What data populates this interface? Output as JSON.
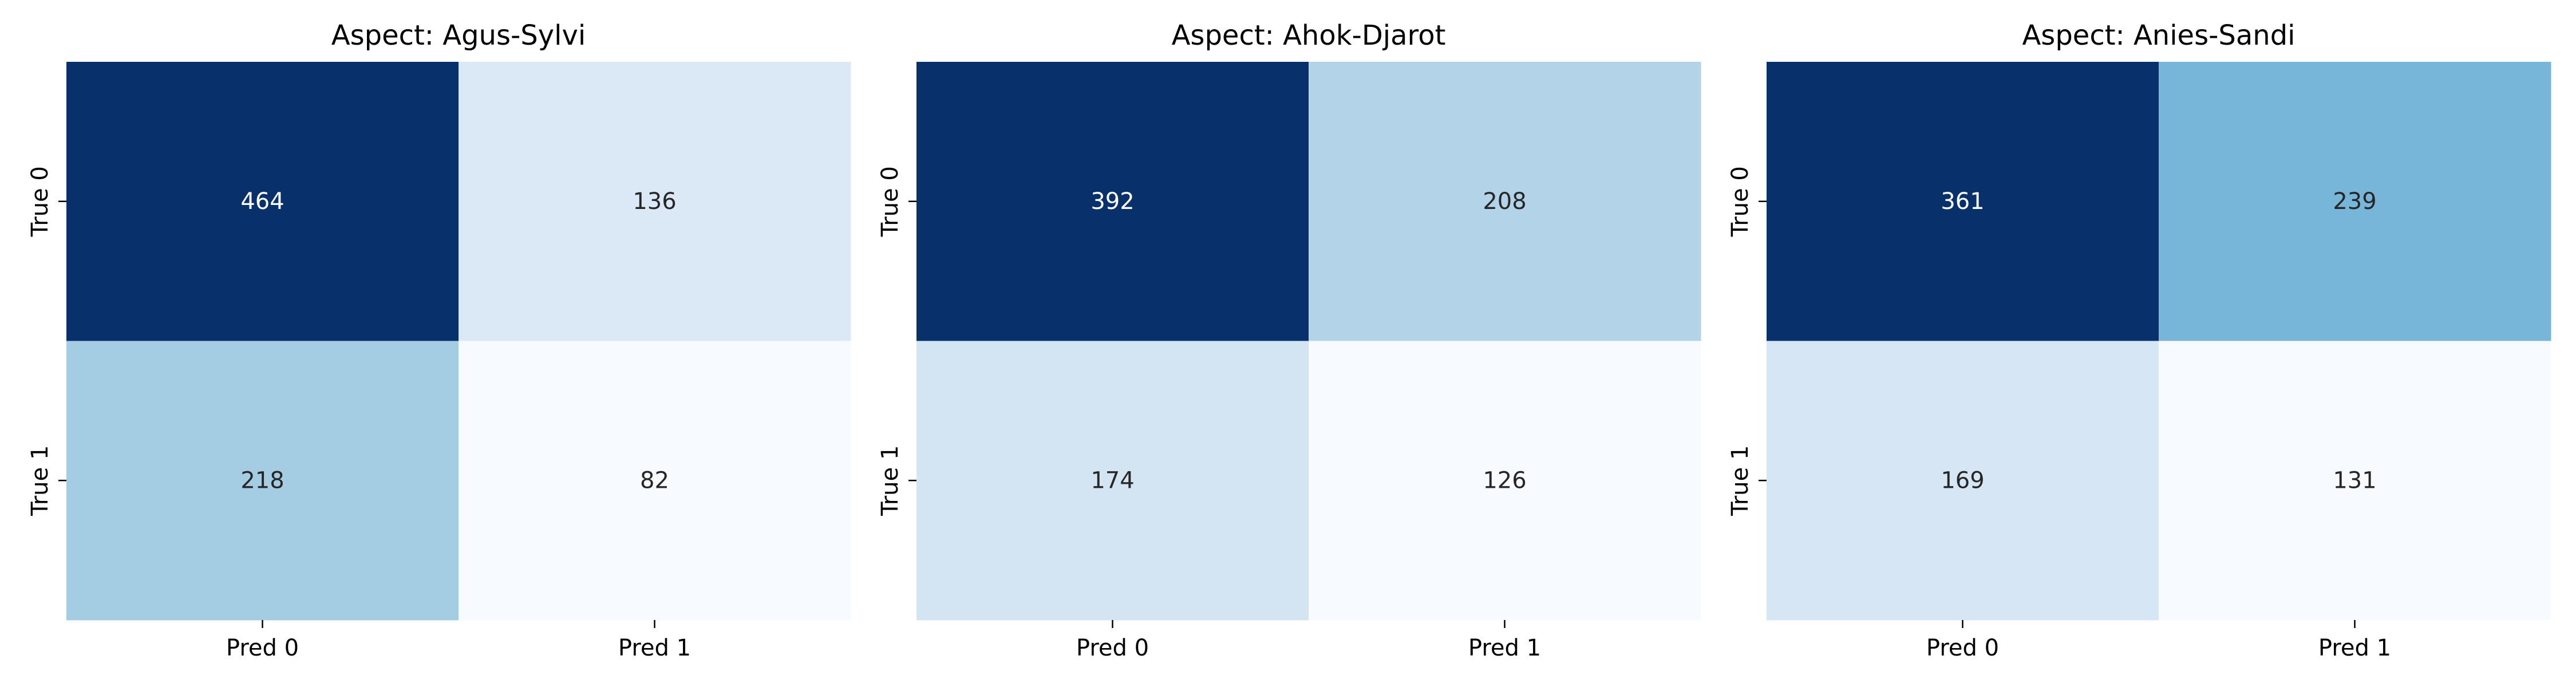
{
  "chart_data": [
    {
      "type": "heatmap",
      "title": "Aspect: Agus-Sylvi",
      "x_categories": [
        "Pred 0",
        "Pred 1"
      ],
      "y_categories": [
        "True 0",
        "True 1"
      ],
      "values": [
        [
          464,
          136
        ],
        [
          218,
          82
        ]
      ],
      "colormap": "Blues",
      "colorbar": false
    },
    {
      "type": "heatmap",
      "title": "Aspect: Ahok-Djarot",
      "x_categories": [
        "Pred 0",
        "Pred 1"
      ],
      "y_categories": [
        "True 0",
        "True 1"
      ],
      "values": [
        [
          392,
          208
        ],
        [
          174,
          126
        ]
      ],
      "colormap": "Blues",
      "colorbar": false
    },
    {
      "type": "heatmap",
      "title": "Aspect: Anies-Sandi",
      "x_categories": [
        "Pred 0",
        "Pred 1"
      ],
      "y_categories": [
        "True 0",
        "True 1"
      ],
      "values": [
        [
          361,
          239
        ],
        [
          169,
          131
        ]
      ],
      "colormap": "Blues",
      "colorbar": false
    }
  ]
}
